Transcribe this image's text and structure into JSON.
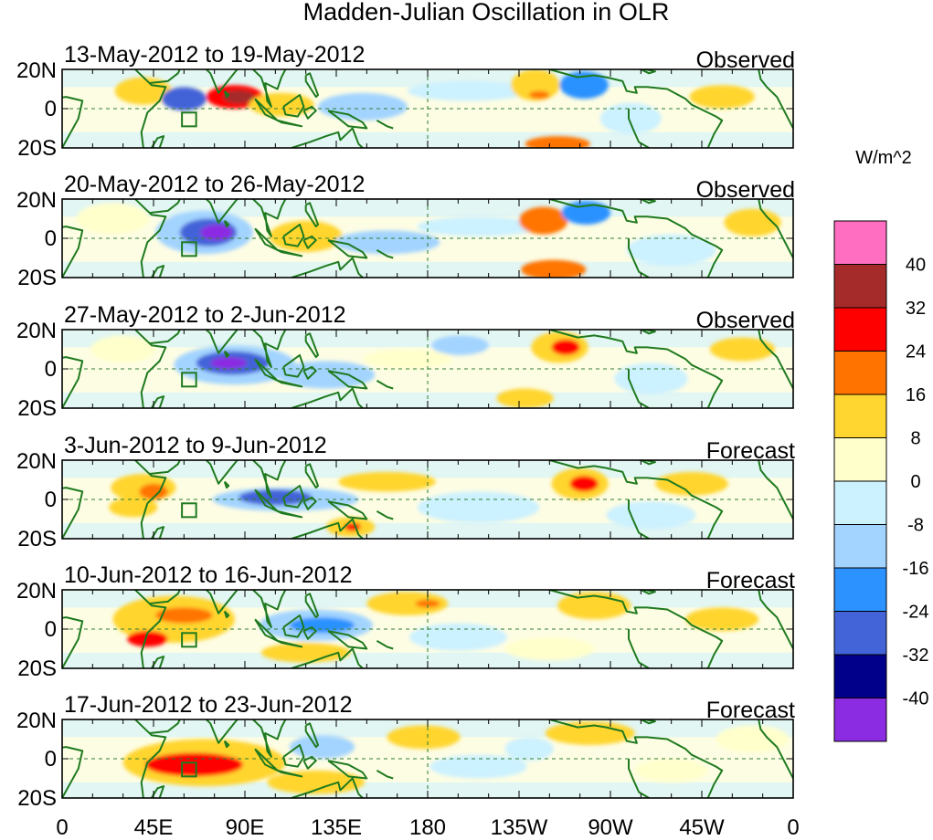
{
  "chart_data": {
    "type": "heatmap",
    "title": "Madden-Julian Oscillation in OLR",
    "variable": "OLR anomaly",
    "units": "W/m^2",
    "x_ticks": [
      "0",
      "45E",
      "90E",
      "135E",
      "180",
      "135W",
      "90W",
      "45W",
      "0"
    ],
    "x_range_deg_east": [
      0,
      360
    ],
    "y_ticks": [
      "20N",
      "0",
      "20S"
    ],
    "y_range_deg": [
      -20,
      20
    ],
    "colorbar": {
      "levels": [
        "40",
        "32",
        "24",
        "16",
        "8",
        "0",
        "-8",
        "-16",
        "-24",
        "-32",
        "-40"
      ],
      "colors_top_to_bottom": [
        "#ff6ec1",
        "#a52a2a",
        "#ff0000",
        "#ff7400",
        "#ffd52f",
        "#ffffcc",
        "#ccf1ff",
        "#a3d4ff",
        "#2b92ff",
        "#4264d8",
        "#00008b",
        "#8b2be2"
      ]
    },
    "panels": [
      {
        "period": "13-May-2012 to 19-May-2012",
        "kind": "Observed",
        "anomalies": [
          {
            "lon": 40,
            "lat": 9,
            "w": 14,
            "h": 7,
            "v": 10
          },
          {
            "lon": 60,
            "lat": 5,
            "w": 11,
            "h": 6,
            "v": -30
          },
          {
            "lon": 85,
            "lat": 6,
            "w": 14,
            "h": 6,
            "v": 26
          },
          {
            "lon": 87,
            "lat": 6,
            "w": 8,
            "h": 3.5,
            "v": 34
          },
          {
            "lon": 108,
            "lat": 2,
            "w": 16,
            "h": 6,
            "v": 10
          },
          {
            "lon": 148,
            "lat": 1,
            "w": 22,
            "h": 7,
            "v": -10
          },
          {
            "lon": 200,
            "lat": 9,
            "w": 30,
            "h": 5,
            "v": -8
          },
          {
            "lon": 233,
            "lat": 12,
            "w": 12,
            "h": 8,
            "v": 14
          },
          {
            "lon": 235,
            "lat": 7,
            "w": 5,
            "h": 2,
            "v": 22
          },
          {
            "lon": 257,
            "lat": 12,
            "w": 12,
            "h": 7,
            "v": -22
          },
          {
            "lon": 244,
            "lat": -18,
            "w": 16,
            "h": 4,
            "v": 18
          },
          {
            "lon": 280,
            "lat": -5,
            "w": 15,
            "h": 8,
            "v": -8
          },
          {
            "lon": 325,
            "lat": 6,
            "w": 16,
            "h": 6,
            "v": 8
          }
        ]
      },
      {
        "period": "20-May-2012 to 26-May-2012",
        "kind": "Observed",
        "anomalies": [
          {
            "lon": 25,
            "lat": 10,
            "w": 18,
            "h": 8,
            "v": 6
          },
          {
            "lon": 70,
            "lat": 3,
            "w": 24,
            "h": 11,
            "v": -16
          },
          {
            "lon": 72,
            "lat": 3,
            "w": 14,
            "h": 7,
            "v": -28
          },
          {
            "lon": 76,
            "lat": 3,
            "w": 8,
            "h": 4,
            "v": -42
          },
          {
            "lon": 120,
            "lat": 1,
            "w": 18,
            "h": 8,
            "v": 8
          },
          {
            "lon": 160,
            "lat": -2,
            "w": 26,
            "h": 6,
            "v": -10
          },
          {
            "lon": 205,
            "lat": 6,
            "w": 30,
            "h": 5,
            "v": -8
          },
          {
            "lon": 237,
            "lat": 9,
            "w": 12,
            "h": 7,
            "v": 20
          },
          {
            "lon": 258,
            "lat": 13,
            "w": 12,
            "h": 6,
            "v": -18
          },
          {
            "lon": 242,
            "lat": -16,
            "w": 16,
            "h": 5,
            "v": 20
          },
          {
            "lon": 300,
            "lat": -6,
            "w": 22,
            "h": 8,
            "v": -8
          },
          {
            "lon": 340,
            "lat": 8,
            "w": 14,
            "h": 7,
            "v": 8
          }
        ]
      },
      {
        "period": "27-May-2012 to 2-Jun-2012",
        "kind": "Observed",
        "anomalies": [
          {
            "lon": 30,
            "lat": 10,
            "w": 16,
            "h": 7,
            "v": 6
          },
          {
            "lon": 85,
            "lat": 2,
            "w": 30,
            "h": 10,
            "v": -16
          },
          {
            "lon": 84,
            "lat": 3,
            "w": 18,
            "h": 6,
            "v": -28
          },
          {
            "lon": 82,
            "lat": 3,
            "w": 9,
            "h": 3,
            "v": -42
          },
          {
            "lon": 130,
            "lat": -3,
            "w": 24,
            "h": 7,
            "v": -10
          },
          {
            "lon": 170,
            "lat": 5,
            "w": 22,
            "h": 5,
            "v": 6
          },
          {
            "lon": 196,
            "lat": 12,
            "w": 14,
            "h": 5,
            "v": -10
          },
          {
            "lon": 245,
            "lat": 11,
            "w": 14,
            "h": 8,
            "v": 14
          },
          {
            "lon": 248,
            "lat": 11,
            "w": 7,
            "h": 4,
            "v": 26
          },
          {
            "lon": 228,
            "lat": -15,
            "w": 14,
            "h": 5,
            "v": 8
          },
          {
            "lon": 290,
            "lat": -5,
            "w": 18,
            "h": 8,
            "v": -8
          },
          {
            "lon": 335,
            "lat": 10,
            "w": 16,
            "h": 6,
            "v": 8
          }
        ]
      },
      {
        "period": "3-Jun-2012 to 9-Jun-2012",
        "kind": "Forecast",
        "anomalies": [
          {
            "lon": 40,
            "lat": 6,
            "w": 16,
            "h": 7,
            "v": 12
          },
          {
            "lon": 45,
            "lat": 4,
            "w": 7,
            "h": 4,
            "v": 22
          },
          {
            "lon": 35,
            "lat": -4,
            "w": 12,
            "h": 5,
            "v": 10
          },
          {
            "lon": 110,
            "lat": 0,
            "w": 36,
            "h": 6,
            "v": -16
          },
          {
            "lon": 105,
            "lat": 1,
            "w": 18,
            "h": 4,
            "v": -26
          },
          {
            "lon": 160,
            "lat": 9,
            "w": 24,
            "h": 5,
            "v": 8
          },
          {
            "lon": 142,
            "lat": -14,
            "w": 12,
            "h": 5,
            "v": 14
          },
          {
            "lon": 143,
            "lat": -14,
            "w": 4,
            "h": 2,
            "v": 26
          },
          {
            "lon": 205,
            "lat": -4,
            "w": 30,
            "h": 8,
            "v": -8
          },
          {
            "lon": 255,
            "lat": 8,
            "w": 14,
            "h": 8,
            "v": 14
          },
          {
            "lon": 257,
            "lat": 8,
            "w": 7,
            "h": 4,
            "v": 26
          },
          {
            "lon": 310,
            "lat": 8,
            "w": 18,
            "h": 6,
            "v": 8
          },
          {
            "lon": 290,
            "lat": -8,
            "w": 22,
            "h": 7,
            "v": -8
          }
        ]
      },
      {
        "period": "10-Jun-2012 to 16-Jun-2012",
        "kind": "Forecast",
        "anomalies": [
          {
            "lon": 55,
            "lat": 5,
            "w": 30,
            "h": 12,
            "v": 14
          },
          {
            "lon": 60,
            "lat": 7,
            "w": 14,
            "h": 4,
            "v": 22
          },
          {
            "lon": 42,
            "lat": -5,
            "w": 10,
            "h": 4,
            "v": 24
          },
          {
            "lon": 125,
            "lat": 2,
            "w": 28,
            "h": 8,
            "v": -12
          },
          {
            "lon": 128,
            "lat": 2,
            "w": 16,
            "h": 4,
            "v": -22
          },
          {
            "lon": 120,
            "lat": -12,
            "w": 22,
            "h": 5,
            "v": 10
          },
          {
            "lon": 170,
            "lat": 13,
            "w": 20,
            "h": 6,
            "v": 10
          },
          {
            "lon": 180,
            "lat": 13,
            "w": 6,
            "h": 2,
            "v": 22
          },
          {
            "lon": 195,
            "lat": -4,
            "w": 24,
            "h": 7,
            "v": -8
          },
          {
            "lon": 262,
            "lat": 12,
            "w": 18,
            "h": 7,
            "v": 10
          },
          {
            "lon": 325,
            "lat": 5,
            "w": 18,
            "h": 6,
            "v": 8
          },
          {
            "lon": 240,
            "lat": -10,
            "w": 22,
            "h": 6,
            "v": 6
          }
        ]
      },
      {
        "period": "17-Jun-2012 to 23-Jun-2012",
        "kind": "Forecast",
        "anomalies": [
          {
            "lon": 70,
            "lat": -2,
            "w": 40,
            "h": 12,
            "v": 14
          },
          {
            "lon": 65,
            "lat": -3,
            "w": 24,
            "h": 6,
            "v": 24
          },
          {
            "lon": 125,
            "lat": -12,
            "w": 24,
            "h": 6,
            "v": 12
          },
          {
            "lon": 128,
            "lat": 6,
            "w": 16,
            "h": 6,
            "v": -10
          },
          {
            "lon": 178,
            "lat": 11,
            "w": 18,
            "h": 6,
            "v": 10
          },
          {
            "lon": 205,
            "lat": -4,
            "w": 24,
            "h": 6,
            "v": -8
          },
          {
            "lon": 260,
            "lat": 13,
            "w": 22,
            "h": 6,
            "v": 8
          },
          {
            "lon": 230,
            "lat": 5,
            "w": 12,
            "h": 6,
            "v": -8
          },
          {
            "lon": 300,
            "lat": -6,
            "w": 18,
            "h": 6,
            "v": 6
          },
          {
            "lon": 340,
            "lat": 10,
            "w": 18,
            "h": 7,
            "v": 6
          }
        ]
      }
    ]
  }
}
